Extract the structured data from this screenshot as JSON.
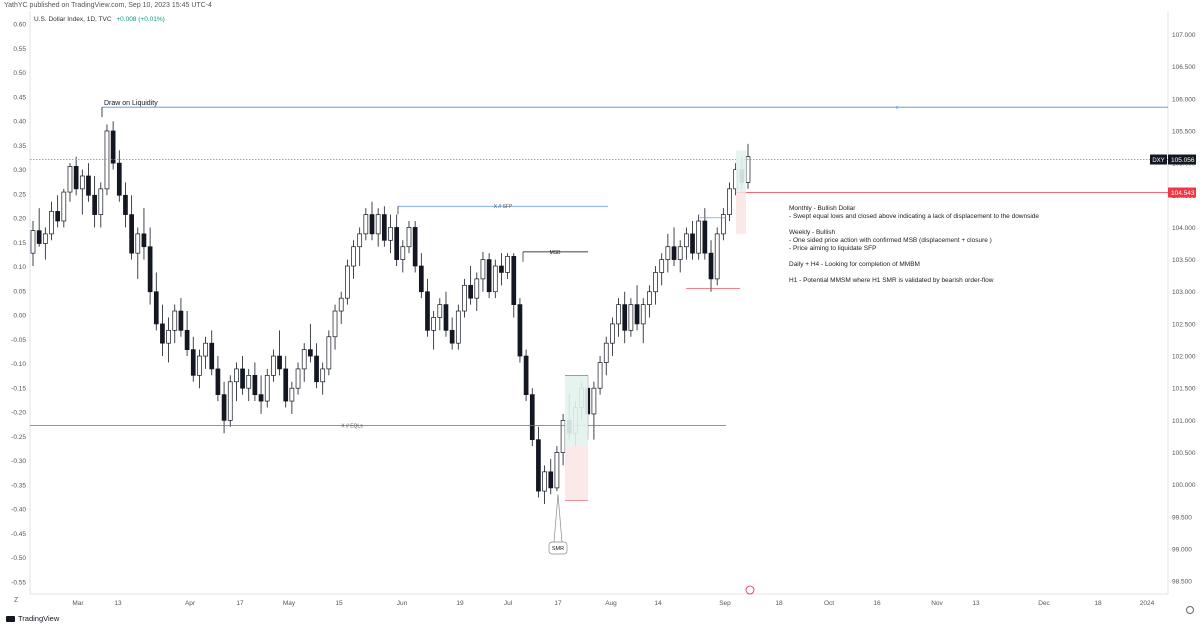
{
  "header": {
    "published": "YathYC published on TradingView.com, Sep 10, 2023 15:45 UTC-4",
    "symbol": "U.S. Dollar Index, 1D, TVC",
    "change": "+0.008 (+0.01%)"
  },
  "footer": {
    "brand": "TradingView",
    "z_button": "Z"
  },
  "notes": [
    "Monthly - Bullish Dollar",
    "- Swept equal lows and closed above indicating a lack of displacement to the downside",
    "",
    "Weekly - Bullish",
    "- One sided price action with confirmed MSB (displacement + closure )",
    "- Price aiming to liquidate SFP",
    "",
    "Daily + H4 - Looking for completion of MMBM",
    "",
    "H1 - Potential MMSM where H1 SMR is validated by bearish order-flow"
  ],
  "chart_data": {
    "type": "candlestick",
    "left_axis": {
      "ticks": [
        "0.60",
        "0.55",
        "0.50",
        "0.45",
        "0.40",
        "0.35",
        "0.30",
        "0.25",
        "0.20",
        "0.15",
        "0.10",
        "0.05",
        "0.00",
        "-0.05",
        "-0.10",
        "-0.15",
        "-0.20",
        "-0.25",
        "-0.30",
        "-0.35",
        "-0.40",
        "-0.45",
        "-0.50",
        "-0.55"
      ],
      "range": [
        -0.575,
        0.625
      ]
    },
    "right_axis": {
      "ticks": [
        "107.000",
        "106.500",
        "106.000",
        "105.500",
        "105.000",
        "104.500",
        "104.000",
        "103.500",
        "103.000",
        "102.500",
        "102.000",
        "101.500",
        "101.000",
        "100.500",
        "100.000",
        "99.500",
        "99.000",
        "98.500"
      ],
      "range": [
        98.3,
        107.35
      ]
    },
    "x_ticks": [
      "Mar",
      "13",
      "Apr",
      "17",
      "May",
      "15",
      "Jun",
      "19",
      "Jul",
      "17",
      "Aug",
      "14",
      "Sep",
      "18",
      "Oct",
      "16",
      "Nov",
      "13",
      "Dec",
      "18",
      "2024"
    ],
    "last_price": {
      "symbol": "DXY",
      "value": "105.056",
      "color": "#131722"
    },
    "level_price": {
      "value": "104.543",
      "color": "#f23645"
    },
    "levels": [
      {
        "label": "Draw on Liquidity",
        "price": 105.87,
        "color": "#4a90e2",
        "marker": "x"
      },
      {
        "label": "X // SFP",
        "price": 104.33,
        "color": "#4a90e2"
      },
      {
        "label": "MSB",
        "price": 103.62,
        "color": "#000000"
      },
      {
        "label": "X // EQLs",
        "price": 100.92,
        "color": "#f23645"
      }
    ],
    "annotation": "SMR",
    "candles": [
      [
        103.6,
        104.1,
        103.4,
        103.95
      ],
      [
        103.95,
        104.3,
        103.7,
        103.75
      ],
      [
        103.75,
        104.0,
        103.5,
        103.9
      ],
      [
        103.9,
        104.4,
        103.8,
        104.25
      ],
      [
        104.25,
        104.5,
        104.0,
        104.1
      ],
      [
        104.1,
        104.6,
        104.0,
        104.55
      ],
      [
        104.55,
        105.0,
        104.4,
        104.95
      ],
      [
        104.95,
        105.1,
        104.5,
        104.6
      ],
      [
        104.6,
        104.9,
        104.2,
        104.8
      ],
      [
        104.8,
        105.0,
        104.4,
        104.5
      ],
      [
        104.5,
        104.8,
        104.0,
        104.2
      ],
      [
        104.2,
        104.7,
        104.0,
        104.6
      ],
      [
        104.6,
        105.6,
        104.5,
        105.5
      ],
      [
        105.5,
        105.65,
        104.9,
        105.0
      ],
      [
        105.0,
        105.2,
        104.4,
        104.5
      ],
      [
        104.5,
        104.7,
        104.0,
        104.2
      ],
      [
        104.2,
        104.5,
        103.5,
        103.6
      ],
      [
        103.6,
        104.0,
        103.2,
        103.9
      ],
      [
        103.9,
        104.3,
        103.5,
        103.7
      ],
      [
        103.7,
        104.0,
        102.8,
        103.0
      ],
      [
        103.0,
        103.3,
        102.4,
        102.5
      ],
      [
        102.5,
        102.8,
        102.0,
        102.2
      ],
      [
        102.2,
        102.6,
        101.9,
        102.4
      ],
      [
        102.4,
        102.8,
        102.2,
        102.7
      ],
      [
        102.7,
        102.9,
        102.3,
        102.4
      ],
      [
        102.4,
        102.7,
        102.0,
        102.1
      ],
      [
        102.1,
        102.3,
        101.6,
        101.7
      ],
      [
        101.7,
        102.1,
        101.5,
        102.0
      ],
      [
        102.0,
        102.3,
        101.8,
        102.2
      ],
      [
        102.2,
        102.4,
        101.7,
        101.8
      ],
      [
        101.8,
        102.0,
        101.3,
        101.4
      ],
      [
        101.4,
        101.6,
        100.8,
        101.0
      ],
      [
        101.0,
        101.7,
        100.9,
        101.6
      ],
      [
        101.6,
        101.9,
        101.3,
        101.8
      ],
      [
        101.8,
        102.0,
        101.4,
        101.5
      ],
      [
        101.5,
        101.8,
        101.3,
        101.7
      ],
      [
        101.7,
        101.9,
        101.3,
        101.4
      ],
      [
        101.4,
        101.7,
        101.1,
        101.3
      ],
      [
        101.3,
        101.8,
        101.2,
        101.7
      ],
      [
        101.7,
        102.1,
        101.6,
        102.0
      ],
      [
        102.0,
        102.4,
        101.7,
        101.8
      ],
      [
        101.8,
        102.0,
        101.2,
        101.3
      ],
      [
        101.3,
        101.6,
        101.1,
        101.5
      ],
      [
        101.5,
        101.9,
        101.4,
        101.8
      ],
      [
        101.8,
        102.2,
        101.6,
        102.1
      ],
      [
        102.1,
        102.5,
        101.9,
        102.0
      ],
      [
        102.0,
        102.2,
        101.5,
        101.6
      ],
      [
        101.6,
        101.9,
        101.4,
        101.8
      ],
      [
        101.8,
        102.4,
        101.7,
        102.3
      ],
      [
        102.3,
        102.8,
        102.1,
        102.7
      ],
      [
        102.7,
        103.0,
        102.5,
        102.9
      ],
      [
        102.9,
        103.5,
        102.8,
        103.4
      ],
      [
        103.4,
        103.8,
        103.2,
        103.7
      ],
      [
        103.7,
        104.0,
        103.4,
        103.9
      ],
      [
        103.9,
        104.3,
        103.8,
        104.2
      ],
      [
        104.2,
        104.4,
        103.8,
        103.9
      ],
      [
        103.9,
        104.3,
        103.7,
        104.2
      ],
      [
        104.2,
        104.33,
        103.7,
        103.8
      ],
      [
        103.8,
        104.2,
        103.6,
        104.0
      ],
      [
        104.0,
        104.2,
        103.4,
        103.5
      ],
      [
        103.5,
        103.8,
        103.3,
        103.7
      ],
      [
        103.7,
        104.1,
        103.6,
        104.0
      ],
      [
        104.0,
        104.1,
        103.3,
        103.4
      ],
      [
        103.4,
        103.6,
        102.9,
        103.0
      ],
      [
        103.0,
        103.2,
        102.3,
        102.4
      ],
      [
        102.4,
        102.7,
        102.1,
        102.6
      ],
      [
        102.6,
        102.9,
        102.4,
        102.8
      ],
      [
        102.8,
        103.0,
        102.3,
        102.4
      ],
      [
        102.4,
        102.6,
        102.1,
        102.2
      ],
      [
        102.2,
        102.8,
        102.1,
        102.7
      ],
      [
        102.7,
        103.2,
        102.6,
        103.1
      ],
      [
        103.1,
        103.4,
        102.8,
        102.9
      ],
      [
        102.9,
        103.3,
        102.7,
        103.2
      ],
      [
        103.2,
        103.62,
        103.0,
        103.5
      ],
      [
        103.5,
        103.6,
        102.9,
        103.0
      ],
      [
        103.0,
        103.5,
        102.9,
        103.4
      ],
      [
        103.4,
        103.6,
        103.1,
        103.3
      ],
      [
        103.3,
        103.6,
        103.2,
        103.55
      ],
      [
        103.55,
        103.6,
        102.6,
        102.8
      ],
      [
        102.8,
        102.9,
        101.9,
        102.0
      ],
      [
        102.0,
        102.1,
        101.3,
        101.4
      ],
      [
        101.4,
        101.5,
        100.6,
        100.7
      ],
      [
        100.7,
        100.9,
        99.8,
        99.9
      ],
      [
        99.9,
        100.3,
        99.7,
        100.2
      ],
      [
        100.2,
        100.4,
        99.85,
        99.95
      ],
      [
        99.95,
        100.6,
        99.9,
        100.5
      ],
      [
        100.5,
        101.1,
        100.3,
        101.0
      ],
      [
        101.0,
        101.4,
        100.7,
        100.8
      ],
      [
        100.8,
        101.3,
        100.6,
        101.2
      ],
      [
        101.2,
        101.6,
        101.0,
        101.5
      ],
      [
        101.5,
        101.7,
        100.7,
        101.1
      ],
      [
        101.1,
        101.6,
        100.7,
        101.5
      ],
      [
        101.5,
        102.0,
        101.4,
        101.9
      ],
      [
        101.9,
        102.3,
        101.7,
        102.2
      ],
      [
        102.2,
        102.6,
        102.0,
        102.5
      ],
      [
        102.5,
        102.9,
        102.3,
        102.8
      ],
      [
        102.8,
        103.0,
        102.2,
        102.4
      ],
      [
        102.4,
        102.9,
        102.3,
        102.8
      ],
      [
        102.8,
        103.1,
        102.4,
        102.5
      ],
      [
        102.5,
        102.9,
        102.2,
        102.8
      ],
      [
        102.8,
        103.1,
        102.6,
        103.0
      ],
      [
        103.0,
        103.4,
        102.8,
        103.3
      ],
      [
        103.3,
        103.6,
        103.1,
        103.5
      ],
      [
        103.5,
        103.9,
        103.3,
        103.7
      ],
      [
        103.7,
        104.0,
        103.4,
        103.5
      ],
      [
        103.5,
        103.8,
        103.3,
        103.7
      ],
      [
        103.7,
        104.0,
        103.5,
        103.9
      ],
      [
        103.9,
        104.1,
        103.5,
        103.6
      ],
      [
        103.6,
        104.2,
        103.5,
        104.1
      ],
      [
        104.1,
        104.3,
        103.5,
        103.6
      ],
      [
        103.6,
        103.8,
        103.0,
        103.2
      ],
      [
        103.2,
        104.0,
        103.1,
        103.9
      ],
      [
        103.9,
        104.3,
        103.8,
        104.2
      ],
      [
        104.2,
        104.7,
        104.1,
        104.6
      ],
      [
        104.6,
        105.0,
        104.5,
        104.9
      ],
      [
        104.9,
        105.1,
        104.6,
        104.7
      ],
      [
        104.7,
        105.3,
        104.6,
        105.1
      ]
    ]
  }
}
